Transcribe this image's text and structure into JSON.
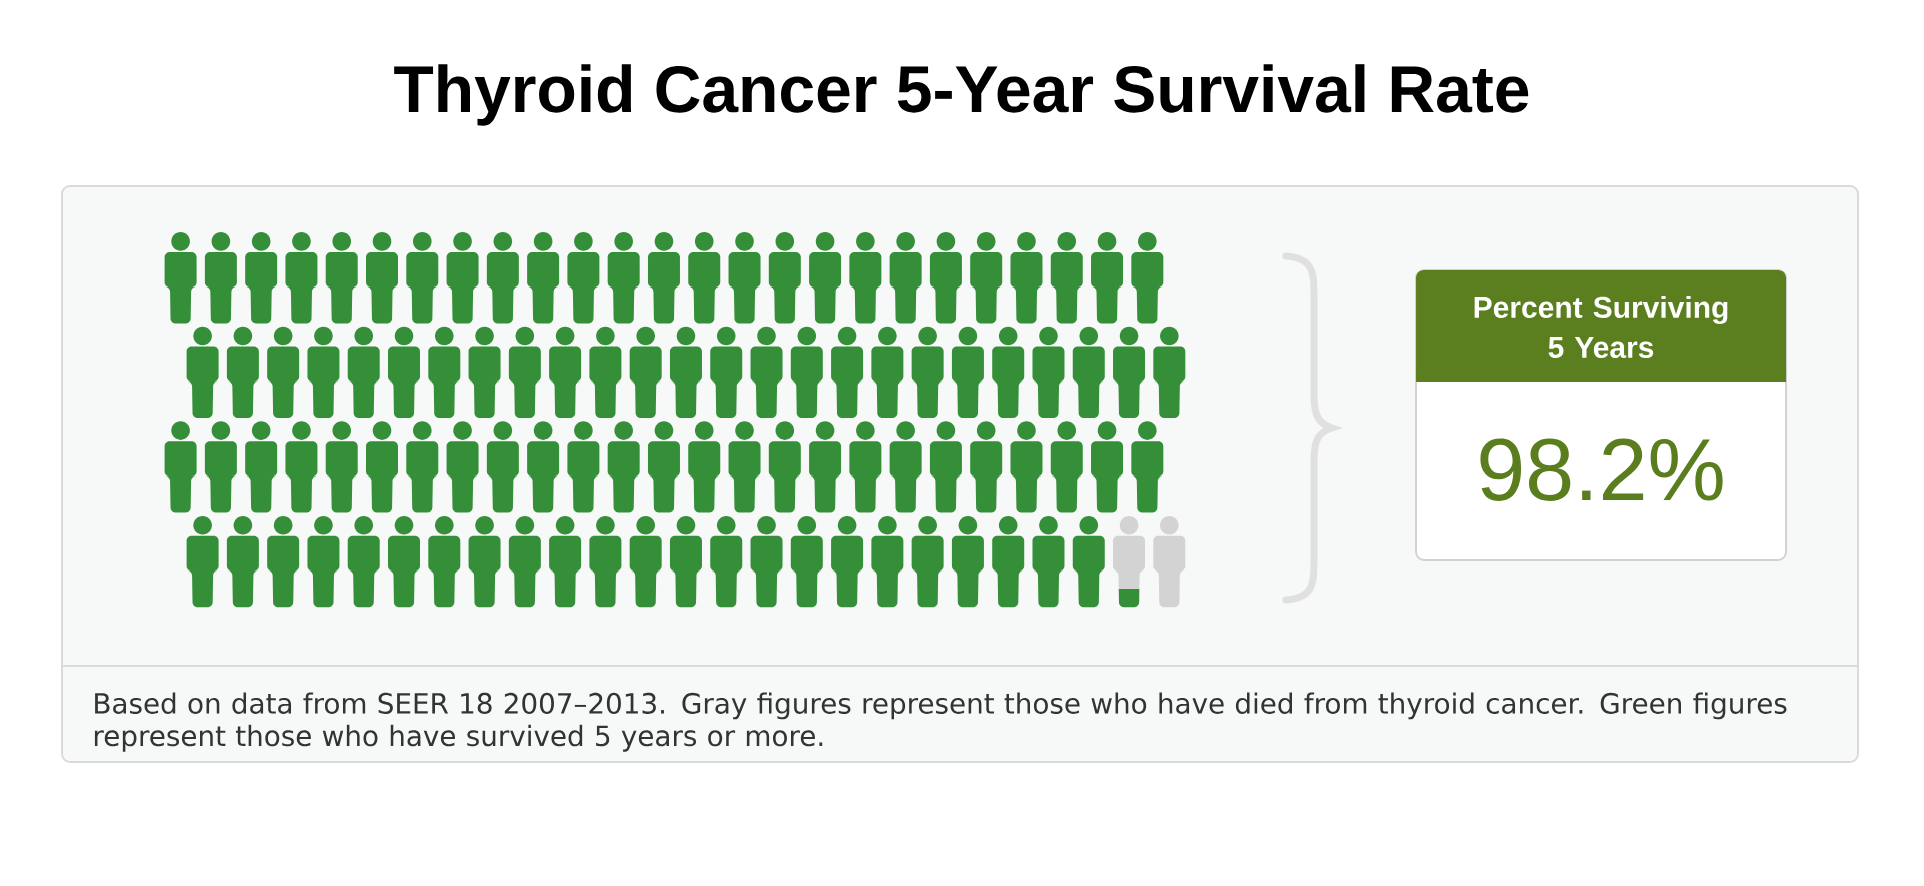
{
  "chart_data": {
    "type": "other",
    "title": "Thyroid Cancer 5-Year Survival Rate",
    "values": [
      98.2
    ],
    "value_labels": [
      "98.2%"
    ],
    "annotations": [
      "Percent Surviving 5 Years",
      "Based on data from SEER 18 2007–2013. Gray figures represent those who have died from thyroid cancer. Green figures represent those who have survived 5 years or more."
    ]
  }
}
